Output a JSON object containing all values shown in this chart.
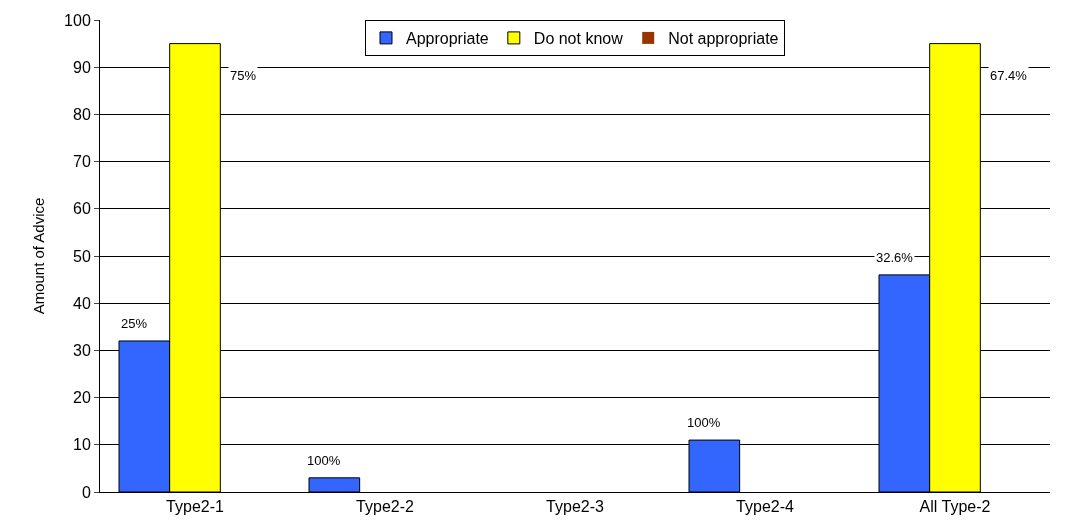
{
  "chart_data": {
    "type": "bar",
    "ylabel": "Amount of Advice",
    "categories": [
      "Type2-1",
      "Type2-2",
      "Type2-3",
      "Type2-4",
      "All Type-2"
    ],
    "series": [
      {
        "name": "Appropriate",
        "color": "#3366ff",
        "values": [
          32,
          3,
          0,
          11,
          46
        ]
      },
      {
        "name": "Do not know",
        "color": "#ffff00",
        "values": [
          95,
          0,
          0,
          0,
          95
        ]
      },
      {
        "name": "Not appropriate",
        "color": "#993300",
        "values": [
          0,
          0,
          0,
          0,
          0
        ]
      }
    ],
    "annotations": [
      "25%",
      "75%",
      "100%",
      "100%",
      "32.6%",
      "67.4%"
    ],
    "ylim": [
      0,
      100
    ],
    "yticks": [
      0,
      10,
      20,
      30,
      40,
      50,
      60,
      70,
      80,
      90,
      100
    ],
    "grid": "y",
    "legend": "top"
  }
}
